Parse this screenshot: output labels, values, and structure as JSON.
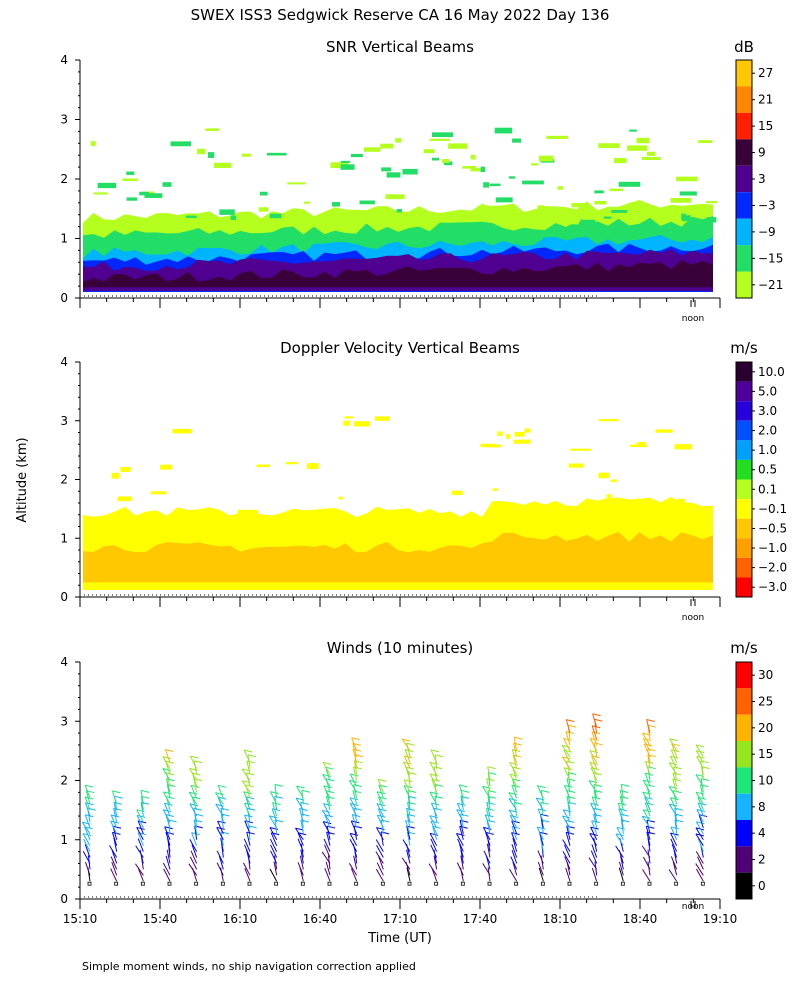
{
  "figure": {
    "title": "SWEX ISS3 Sedgwick Reserve CA  16 May 2022 Day 136",
    "ylabel": "Altitude (km)",
    "xlabel": "Time (UT)",
    "footnote": "Simple moment winds, no ship navigation correction applied",
    "noon_label": "noon"
  },
  "chart_data": [
    {
      "type": "heatmap",
      "title": "SNR Vertical Beams",
      "ylim": [
        0,
        4
      ],
      "yticks": [
        "0",
        "1",
        "2",
        "3",
        "4"
      ],
      "colorbar": {
        "unit": "dB",
        "labels": [
          "27",
          "21",
          "15",
          "9",
          "3",
          "−3",
          "−9",
          "−15",
          "−21"
        ],
        "colors": [
          "#ffc800",
          "#ff8800",
          "#ff2000",
          "#3a003a",
          "#500090",
          "#0028ff",
          "#00b4ff",
          "#22dd66",
          "#b4ff1e"
        ]
      },
      "layers": [
        {
          "z": 1,
          "y0": 0.1,
          "y1": 1.35
        },
        {
          "z": 2,
          "y0": 0.1,
          "y1": 1.05
        },
        {
          "z": 3,
          "y0": 0.1,
          "y1": 0.75
        },
        {
          "z": 4,
          "y0": 0.1,
          "y1": 0.62
        },
        {
          "z": 5,
          "y0": 0.12,
          "y1": 0.52
        },
        {
          "z": 6,
          "y0": 0.18,
          "y1": 0.32
        }
      ]
    },
    {
      "type": "heatmap",
      "title": "Doppler Velocity Vertical Beams",
      "ylim": [
        0,
        4
      ],
      "yticks": [
        "0",
        "1",
        "2",
        "3",
        "4"
      ],
      "colorbar": {
        "unit": "m/s",
        "labels": [
          "10.0",
          "5.0",
          "3.0",
          "2.0",
          "1.0",
          "0.5",
          "0.1",
          "−0.1",
          "−0.5",
          "−1.0",
          "−2.0",
          "−3.0"
        ],
        "colors": [
          "#2a0030",
          "#50009a",
          "#2800dc",
          "#0050ff",
          "#00a0ff",
          "#22dd22",
          "#b4ff1e",
          "#ffff00",
          "#ffc800",
          "#ffa000",
          "#ff6000",
          "#ff0000"
        ]
      },
      "layers": [
        {
          "z": 7,
          "y0": 0.12,
          "y1": 1.45
        },
        {
          "z": 8,
          "y0": 0.25,
          "y1": 0.85
        }
      ]
    },
    {
      "type": "scatter",
      "title": "Winds (10 minutes)",
      "ylim": [
        0,
        4
      ],
      "yticks": [
        "0",
        "1",
        "2",
        "3",
        "4"
      ],
      "colorbar": {
        "unit": "m/s",
        "labels": [
          "30",
          "25",
          "20",
          "15",
          "10",
          "8",
          "4",
          "2",
          "0"
        ],
        "colors": [
          "#ff0000",
          "#ff6000",
          "#ffb400",
          "#96e61e",
          "#1ee678",
          "#14b4ff",
          "#0000ff",
          "#500078",
          "#000000"
        ]
      },
      "x": [
        "15:10",
        "15:20",
        "15:30",
        "15:40",
        "15:50",
        "16:00",
        "16:10",
        "16:20",
        "16:30",
        "16:40",
        "16:50",
        "17:00",
        "17:10",
        "17:20",
        "17:30",
        "17:40",
        "17:50",
        "18:00",
        "18:10",
        "18:20",
        "18:30",
        "18:40",
        "18:50",
        "19:00"
      ],
      "top_km": [
        1.8,
        1.7,
        1.7,
        2.4,
        2.3,
        1.8,
        2.4,
        1.8,
        1.8,
        2.2,
        2.6,
        1.9,
        2.6,
        2.4,
        1.8,
        2.1,
        2.6,
        1.8,
        2.9,
        3.0,
        1.8,
        2.9,
        2.6,
        2.5
      ]
    }
  ],
  "xaxis": {
    "ticks": [
      "15:10",
      "15:40",
      "16:10",
      "16:40",
      "17:10",
      "17:40",
      "18:10",
      "18:40",
      "19:10"
    ],
    "xlim": [
      "15:10",
      "19:10"
    ]
  }
}
